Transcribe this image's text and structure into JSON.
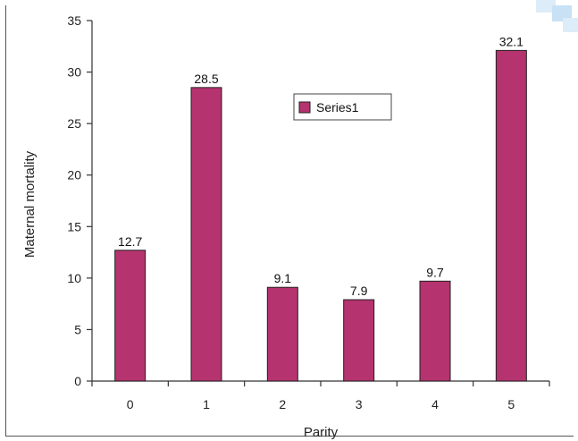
{
  "chart_data": {
    "type": "bar",
    "categories": [
      "0",
      "1",
      "2",
      "3",
      "4",
      "5"
    ],
    "series": [
      {
        "name": "Series1",
        "values": [
          12.7,
          28.5,
          9.1,
          7.9,
          9.7,
          32.1
        ],
        "color": "#b5336e"
      }
    ],
    "data_labels": [
      "12.7",
      "28.5",
      "9.1",
      "7.9",
      "9.7",
      "32.1"
    ],
    "title": "",
    "xlabel": "Parity",
    "ylabel": "Maternal mortality",
    "ylim": [
      0,
      35
    ],
    "yticks": [
      0,
      5,
      10,
      15,
      20,
      25,
      30,
      35
    ],
    "grid": false,
    "legend": {
      "placement": "top-center",
      "label": "Series1"
    }
  },
  "colors": {
    "bar": "#b5336e",
    "bar_stroke": "#222222",
    "axis": "#333333",
    "corner_decoration": "#cfe6f7"
  }
}
